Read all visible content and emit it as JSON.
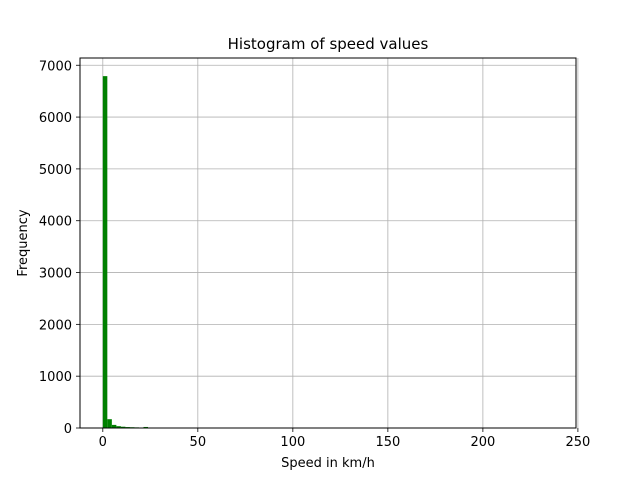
{
  "chart_data": {
    "type": "bar",
    "title": "Histogram of speed values",
    "xlabel": "Speed in km/h",
    "ylabel": "Frequency",
    "xlim": [
      -12,
      249
    ],
    "ylim": [
      0,
      7140
    ],
    "xticks": [
      0,
      50,
      100,
      150,
      200,
      250
    ],
    "yticks": [
      0,
      1000,
      2000,
      3000,
      4000,
      5000,
      6000,
      7000
    ],
    "grid": true,
    "bar_color": "#008000",
    "bin_width": 2.38,
    "bins": [
      {
        "x": 0.0,
        "count": 6790
      },
      {
        "x": 2.38,
        "count": 170
      },
      {
        "x": 4.76,
        "count": 60
      },
      {
        "x": 7.14,
        "count": 35
      },
      {
        "x": 9.52,
        "count": 25
      },
      {
        "x": 11.9,
        "count": 18
      },
      {
        "x": 14.28,
        "count": 15
      },
      {
        "x": 16.66,
        "count": 12
      },
      {
        "x": 19.04,
        "count": 8
      },
      {
        "x": 21.42,
        "count": 20
      },
      {
        "x": 23.8,
        "count": 6
      },
      {
        "x": 26.18,
        "count": 4
      },
      {
        "x": 28.56,
        "count": 3
      },
      {
        "x": 30.94,
        "count": 2
      },
      {
        "x": 33.32,
        "count": 1
      }
    ]
  }
}
